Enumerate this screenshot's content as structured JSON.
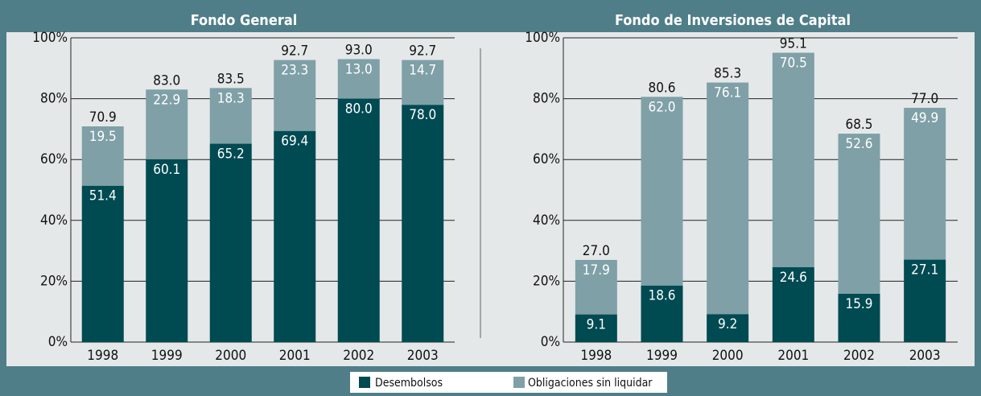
{
  "chart_data": [
    {
      "type": "stacked_bar",
      "title": "Fondo General",
      "categories": [
        "1998",
        "1999",
        "2000",
        "2001",
        "2002",
        "2003"
      ],
      "series": [
        {
          "name": "Desembolsos",
          "color": "#004a52",
          "values": [
            51.4,
            60.1,
            65.2,
            69.4,
            80.0,
            78.0
          ],
          "value_labels": [
            "51.4",
            "60.1",
            "65.2",
            "69.4",
            "80.0",
            "78.0"
          ]
        },
        {
          "name": "Obligaciones sin liquidar",
          "color": "#7fa0a7",
          "values": [
            19.5,
            22.9,
            18.3,
            23.3,
            13.0,
            14.7
          ],
          "value_labels": [
            "19.5",
            "22.9",
            "18.3",
            "23.3",
            "13.0",
            "14.7"
          ]
        }
      ],
      "totals": [
        "70.9",
        "83.0",
        "83.5",
        "92.7",
        "93.0",
        "92.7"
      ],
      "ylim": [
        0,
        100
      ],
      "yticks": [
        {
          "value": 0,
          "label": "0%"
        },
        {
          "value": 20,
          "label": "20%"
        },
        {
          "value": 40,
          "label": "40%"
        },
        {
          "value": 60,
          "label": "60%"
        },
        {
          "value": 80,
          "label": "80%"
        },
        {
          "value": 100,
          "label": "100%"
        }
      ],
      "grid": true
    },
    {
      "type": "stacked_bar",
      "title": "Fondo de Inversiones de Capital",
      "categories": [
        "1998",
        "1999",
        "2000",
        "2001",
        "2002",
        "2003"
      ],
      "series": [
        {
          "name": "Desembolsos",
          "color": "#004a52",
          "values": [
            9.1,
            18.6,
            9.2,
            24.6,
            15.9,
            27.1
          ],
          "value_labels": [
            "9.1",
            "18.6",
            "9.2",
            "24.6",
            "15.9",
            "27.1"
          ]
        },
        {
          "name": "Obligaciones sin liquidar",
          "color": "#7fa0a7",
          "values": [
            17.9,
            62.0,
            76.1,
            70.5,
            52.6,
            49.9
          ],
          "value_labels": [
            "17.9",
            "62.0",
            "76.1",
            "70.5",
            "52.6",
            "49.9"
          ]
        }
      ],
      "totals": [
        "27.0",
        "80.6",
        "85.3",
        "95.1",
        "68.5",
        "77.0"
      ],
      "ylim": [
        0,
        100
      ],
      "yticks": [
        {
          "value": 0,
          "label": "0%"
        },
        {
          "value": 20,
          "label": "20%"
        },
        {
          "value": 40,
          "label": "40%"
        },
        {
          "value": 60,
          "label": "60%"
        },
        {
          "value": 80,
          "label": "80%"
        },
        {
          "value": 100,
          "label": "100%"
        }
      ],
      "grid": true
    }
  ]
}
